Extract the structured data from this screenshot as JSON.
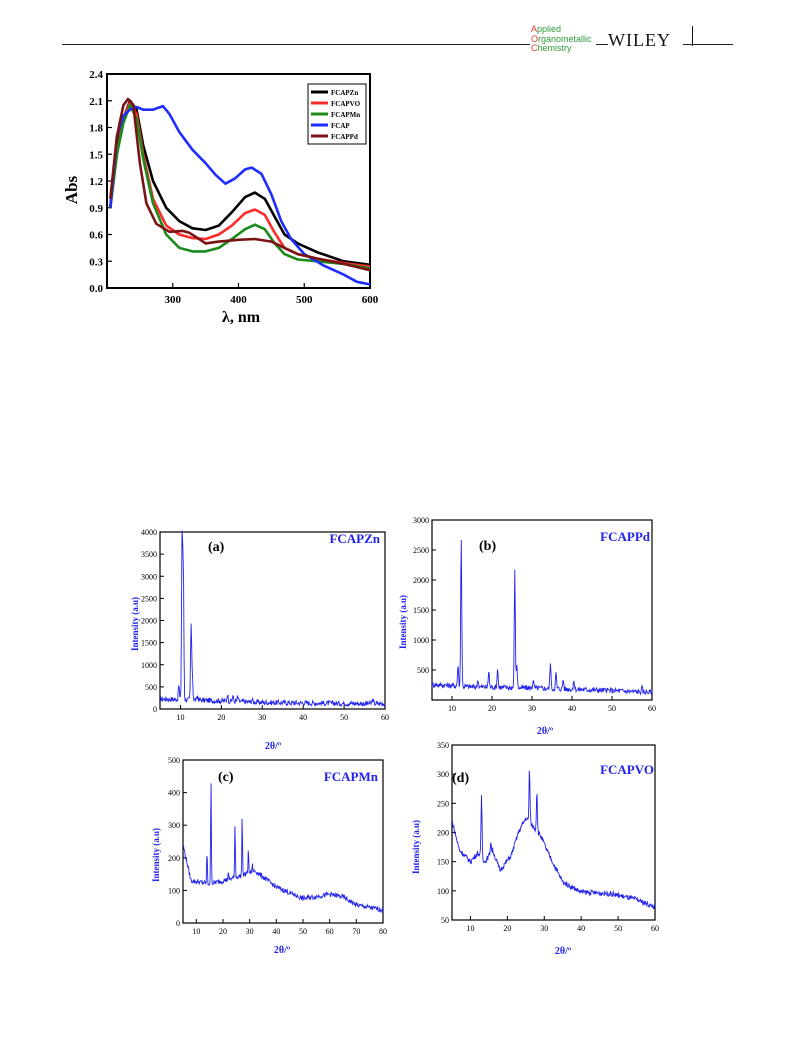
{
  "header": {
    "journal_lines": [
      [
        "A",
        "pplied"
      ],
      [
        "O",
        "rganometallic"
      ],
      [
        "C",
        "hemistry"
      ]
    ],
    "publisher": "WILEY"
  },
  "colors": {
    "black": "#000000",
    "red": "#ff2a2a",
    "green": "#1a8a1a",
    "blue": "#1e2cff",
    "maroon": "#7a1414",
    "xrd_blue": "#2222ee"
  },
  "uv": {
    "xlabel": "λ, nm",
    "ylabel": "Abs",
    "legend": [
      {
        "name": "FCAPZn",
        "color": "#000000"
      },
      {
        "name": "FCAPVO",
        "color": "#ff2a2a"
      },
      {
        "name": "FCAPMn",
        "color": "#1a8a1a"
      },
      {
        "name": "FCAP",
        "color": "#1e2cff"
      },
      {
        "name": "FCAPPd",
        "color": "#7a1414"
      }
    ]
  },
  "xrd": [
    {
      "panel": "(a)",
      "compound": "FCAPZn",
      "ylabel": "Intensity (a.u)",
      "xlabel": "2θ/º"
    },
    {
      "panel": "(b)",
      "compound": "FCAPPd",
      "ylabel": "Intensity (a.u)",
      "xlabel": "2θ/º"
    },
    {
      "panel": "(c)",
      "compound": "FCAPMn",
      "ylabel": "Intensity (a.u)",
      "xlabel": "2θ/º"
    },
    {
      "panel": "(d)",
      "compound": "FCAPVO",
      "ylabel": "Intensity (a.u)",
      "xlabel": "2θ/º"
    }
  ],
  "chart_data": [
    {
      "type": "line",
      "xlim": [
        200,
        600
      ],
      "ylim": [
        0,
        2.4
      ],
      "xticks": [
        300,
        400,
        500,
        600
      ],
      "yticks": [
        0.0,
        0.3,
        0.6,
        0.9,
        1.2,
        1.5,
        1.8,
        2.1,
        2.4
      ],
      "legend_position": "top-right",
      "series": [
        {
          "name": "FCAPZn",
          "color": "#000000",
          "points": [
            [
              205,
              0.9
            ],
            [
              215,
              1.6
            ],
            [
              225,
              1.9
            ],
            [
              235,
              2.1
            ],
            [
              245,
              2.0
            ],
            [
              255,
              1.6
            ],
            [
              270,
              1.2
            ],
            [
              290,
              0.9
            ],
            [
              310,
              0.75
            ],
            [
              330,
              0.67
            ],
            [
              350,
              0.65
            ],
            [
              370,
              0.7
            ],
            [
              390,
              0.85
            ],
            [
              410,
              1.02
            ],
            [
              425,
              1.07
            ],
            [
              440,
              1.0
            ],
            [
              455,
              0.8
            ],
            [
              470,
              0.6
            ],
            [
              490,
              0.5
            ],
            [
              520,
              0.4
            ],
            [
              560,
              0.3
            ],
            [
              600,
              0.26
            ]
          ]
        },
        {
          "name": "FCAPVO",
          "color": "#ff2a2a",
          "points": [
            [
              205,
              0.9
            ],
            [
              215,
              1.5
            ],
            [
              225,
              1.9
            ],
            [
              235,
              2.08
            ],
            [
              245,
              1.95
            ],
            [
              255,
              1.5
            ],
            [
              270,
              1.0
            ],
            [
              290,
              0.7
            ],
            [
              310,
              0.6
            ],
            [
              330,
              0.56
            ],
            [
              350,
              0.55
            ],
            [
              370,
              0.6
            ],
            [
              390,
              0.7
            ],
            [
              410,
              0.84
            ],
            [
              425,
              0.88
            ],
            [
              440,
              0.82
            ],
            [
              455,
              0.62
            ],
            [
              470,
              0.45
            ],
            [
              490,
              0.38
            ],
            [
              520,
              0.33
            ],
            [
              560,
              0.28
            ],
            [
              600,
              0.24
            ]
          ]
        },
        {
          "name": "FCAPMn",
          "color": "#1a8a1a",
          "points": [
            [
              205,
              0.9
            ],
            [
              215,
              1.5
            ],
            [
              225,
              1.85
            ],
            [
              235,
              2.05
            ],
            [
              245,
              1.9
            ],
            [
              255,
              1.45
            ],
            [
              270,
              0.95
            ],
            [
              290,
              0.6
            ],
            [
              310,
              0.45
            ],
            [
              330,
              0.41
            ],
            [
              350,
              0.41
            ],
            [
              370,
              0.45
            ],
            [
              390,
              0.55
            ],
            [
              410,
              0.66
            ],
            [
              425,
              0.71
            ],
            [
              440,
              0.66
            ],
            [
              455,
              0.5
            ],
            [
              470,
              0.38
            ],
            [
              490,
              0.32
            ],
            [
              520,
              0.3
            ],
            [
              560,
              0.27
            ],
            [
              600,
              0.22
            ]
          ]
        },
        {
          "name": "FCAP",
          "color": "#1e2cff",
          "points": [
            [
              205,
              0.9
            ],
            [
              215,
              1.7
            ],
            [
              225,
              1.93
            ],
            [
              235,
              2.0
            ],
            [
              245,
              2.03
            ],
            [
              255,
              2.0
            ],
            [
              270,
              2.0
            ],
            [
              285,
              2.04
            ],
            [
              295,
              1.95
            ],
            [
              310,
              1.75
            ],
            [
              330,
              1.55
            ],
            [
              350,
              1.4
            ],
            [
              365,
              1.27
            ],
            [
              380,
              1.17
            ],
            [
              395,
              1.23
            ],
            [
              410,
              1.33
            ],
            [
              420,
              1.35
            ],
            [
              435,
              1.28
            ],
            [
              450,
              1.05
            ],
            [
              465,
              0.75
            ],
            [
              480,
              0.55
            ],
            [
              500,
              0.38
            ],
            [
              530,
              0.25
            ],
            [
              560,
              0.15
            ],
            [
              580,
              0.07
            ],
            [
              600,
              0.04
            ]
          ]
        },
        {
          "name": "FCAPPd",
          "color": "#7a1414",
          "points": [
            [
              205,
              1.0
            ],
            [
              215,
              1.7
            ],
            [
              225,
              2.05
            ],
            [
              232,
              2.12
            ],
            [
              240,
              2.05
            ],
            [
              250,
              1.4
            ],
            [
              260,
              0.95
            ],
            [
              275,
              0.72
            ],
            [
              295,
              0.63
            ],
            [
              315,
              0.64
            ],
            [
              325,
              0.62
            ],
            [
              340,
              0.55
            ],
            [
              350,
              0.5
            ],
            [
              370,
              0.52
            ],
            [
              400,
              0.54
            ],
            [
              425,
              0.55
            ],
            [
              450,
              0.52
            ],
            [
              470,
              0.45
            ],
            [
              490,
              0.38
            ],
            [
              520,
              0.33
            ],
            [
              560,
              0.27
            ],
            [
              600,
              0.2
            ]
          ]
        }
      ]
    },
    {
      "type": "line",
      "title": "FCAPZn",
      "xlim": [
        5,
        60
      ],
      "ylim": [
        0,
        4000
      ],
      "xticks": [
        10,
        20,
        30,
        40,
        50,
        60
      ],
      "yticks": [
        0,
        500,
        1000,
        1500,
        2000,
        2500,
        3000,
        3500,
        4000
      ],
      "baseline": [
        [
          5,
          230
        ],
        [
          15,
          200
        ],
        [
          30,
          150
        ],
        [
          45,
          130
        ],
        [
          60,
          120
        ]
      ],
      "peaks": [
        [
          9.6,
          550
        ],
        [
          10.4,
          4050
        ],
        [
          10.7,
          3150
        ],
        [
          12.6,
          1900
        ],
        [
          12.9,
          800
        ],
        [
          14.2,
          300
        ],
        [
          21.5,
          350
        ],
        [
          22.8,
          300
        ],
        [
          24,
          280
        ],
        [
          27.5,
          220
        ],
        [
          57,
          220
        ]
      ]
    },
    {
      "type": "line",
      "title": "FCAPPd",
      "xlim": [
        5,
        60
      ],
      "ylim": [
        0,
        3000
      ],
      "xticks": [
        10,
        20,
        30,
        40,
        50,
        60
      ],
      "yticks": [
        500,
        1000,
        1500,
        2000,
        2500,
        3000
      ],
      "baseline": [
        [
          5,
          260
        ],
        [
          15,
          220
        ],
        [
          30,
          200
        ],
        [
          45,
          170
        ],
        [
          60,
          130
        ]
      ],
      "peaks": [
        [
          11.5,
          600
        ],
        [
          12.3,
          2750
        ],
        [
          16.5,
          350
        ],
        [
          19.2,
          500
        ],
        [
          21.4,
          550
        ],
        [
          25.7,
          2150
        ],
        [
          26.2,
          600
        ],
        [
          30.3,
          350
        ],
        [
          34.6,
          650
        ],
        [
          36,
          450
        ],
        [
          37.8,
          350
        ],
        [
          40.5,
          320
        ],
        [
          57.5,
          200
        ]
      ]
    },
    {
      "type": "line",
      "title": "FCAPMn",
      "xlim": [
        5,
        80
      ],
      "ylim": [
        0,
        500
      ],
      "xticks": [
        10,
        20,
        30,
        40,
        50,
        60,
        70,
        80
      ],
      "yticks": [
        0,
        100,
        200,
        300,
        400,
        500
      ],
      "baseline": [
        [
          5,
          240
        ],
        [
          8,
          130
        ],
        [
          15,
          120
        ],
        [
          25,
          140
        ],
        [
          32,
          160
        ],
        [
          40,
          110
        ],
        [
          50,
          75
        ],
        [
          60,
          88
        ],
        [
          65,
          80
        ],
        [
          70,
          55
        ],
        [
          80,
          40
        ]
      ],
      "peaks": [
        [
          14,
          220
        ],
        [
          15.5,
          445
        ],
        [
          22,
          150
        ],
        [
          24.5,
          310
        ],
        [
          27.2,
          330
        ],
        [
          29.5,
          230
        ],
        [
          31,
          180
        ]
      ]
    },
    {
      "type": "line",
      "title": "FCAPVO",
      "xlim": [
        5,
        60
      ],
      "ylim": [
        50,
        350
      ],
      "xticks": [
        10,
        20,
        30,
        40,
        50,
        60
      ],
      "yticks": [
        50,
        100,
        150,
        200,
        250,
        300,
        350
      ],
      "baseline": [
        [
          5,
          220
        ],
        [
          7,
          170
        ],
        [
          10,
          150
        ],
        [
          12,
          165
        ],
        [
          14,
          150
        ],
        [
          16,
          170
        ],
        [
          18,
          135
        ],
        [
          21,
          160
        ],
        [
          23,
          200
        ],
        [
          25,
          225
        ],
        [
          27,
          210
        ],
        [
          29,
          195
        ],
        [
          31,
          165
        ],
        [
          35,
          115
        ],
        [
          40,
          98
        ],
        [
          48,
          95
        ],
        [
          55,
          85
        ],
        [
          60,
          72
        ]
      ],
      "peaks": [
        [
          13,
          265
        ],
        [
          15.5,
          185
        ],
        [
          26,
          310
        ],
        [
          28,
          275
        ]
      ]
    }
  ]
}
